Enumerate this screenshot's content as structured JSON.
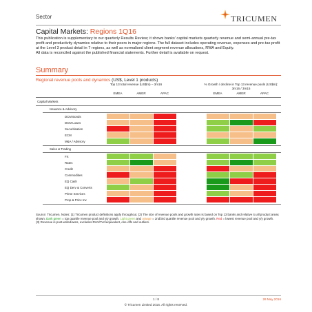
{
  "header": {
    "sector": "Sector",
    "logo_text": "TRICUMEN",
    "logo_icon": "tricumen-star-icon"
  },
  "title": {
    "main": "Capital Markets: ",
    "accent": "Regions 1Q16"
  },
  "intro": [
    "This publication is supplementary to our quarterly Results Review; it shows banks' capital markets quarterly revenue and semi-annual pre-tax profit and productivity dynamics relative to their peers in major regions. The full dataset includes operating revenue, expenses and pre-tax profit at the Level 3 product detail in 7 regions, as well as normalised client segment revenue allocations, RWA and Equity.",
    "All data is reconciled against the published financial statements. Further detail is available on request."
  ],
  "summary_heading": "Summary",
  "section_subtitle": {
    "accent": "Regional revenue pools and dynamics",
    "rest": " (US$, Level 1 products)"
  },
  "table": {
    "group1_header": "Top 13 total revenue (US$m) – 3m16",
    "group2_header": "% Growth / decline in Top 13 revenue pools (US$m): 3m16 / 3m15",
    "columns": [
      "EMEA",
      "AMER",
      "APAC",
      "EMEA",
      "AMER",
      "APAC"
    ],
    "capital_markets_label": "Capital Markets",
    "colors": {
      "dark_green": "#1a9a1a",
      "light_green": "#8fcf48",
      "orange": "#f6bf8a",
      "red": "#ee1c1c"
    },
    "sections": [
      {
        "label": "Issuance & Advisory",
        "rows": [
          {
            "label": "DCM Bonds",
            "cells": [
              "or",
              "or",
              "rd",
              "or",
              "or",
              "or"
            ]
          },
          {
            "label": "DCM Loans",
            "cells": [
              "or",
              "or",
              "rd",
              "lg",
              "dg",
              "rd"
            ]
          },
          {
            "label": "Securitisation",
            "cells": [
              "rd",
              "or",
              "rd",
              "lg",
              "or",
              "lg"
            ]
          },
          {
            "label": "ECM",
            "cells": [
              "or",
              "or",
              "rd",
              "or",
              "or",
              "or"
            ]
          },
          {
            "label": "M&A / Advisory",
            "cells": [
              "lg",
              "or",
              "rd",
              "lg",
              "or",
              "dg"
            ]
          }
        ]
      },
      {
        "label": "Sales & Trading",
        "rows": [
          {
            "label": "FX",
            "cells": [
              "lg",
              "lg",
              "or",
              "lg",
              "lg",
              "lg"
            ]
          },
          {
            "label": "Rates",
            "cells": [
              "lg",
              "dg",
              "or",
              "lg",
              "dg",
              "lg"
            ]
          },
          {
            "label": "Credit",
            "cells": [
              "or",
              "or",
              "rd",
              "rd",
              "or",
              "or"
            ]
          },
          {
            "label": "Commodities",
            "cells": [
              "rd",
              "or",
              "rd",
              "lg",
              "lg",
              "rd"
            ]
          },
          {
            "label": "EQ Cash",
            "cells": [
              "or",
              "lg",
              "rd",
              "dg",
              "rd",
              "rd"
            ]
          },
          {
            "label": "EQ Derv & Converts",
            "cells": [
              "lg",
              "or",
              "rd",
              "dg",
              "or",
              "rd"
            ]
          },
          {
            "label": "Prime Services",
            "cells": [
              "or",
              "or",
              "rd",
              "lg",
              "or",
              "rd"
            ]
          },
          {
            "label": "Prop & Princ Inv",
            "cells": [
              "rd",
              "or",
              "rd",
              "rd",
              "rd",
              "rd"
            ]
          }
        ]
      }
    ]
  },
  "notes": {
    "line1": "Source: Tricumen. Notes: (1) Tricumen product definitions apply throughout. (2) The size of revenue pools and growth rates is based on Top 13 banks and relative to all product areas shown. ",
    "dark_green": "Dark green",
    "t2": " = top quartile revenue pool and y/y growth. ",
    "light_green": "Light green",
    "t3": " and ",
    "orange": "orange",
    "t4": " = 2nd/3rd quartile revenue pool and y/y growth. ",
    "red": "Red",
    "t5": " = lowest revenue pool and y/y growth.",
    "line3": "(3) Revenue is post-writedowns, excludes DVA/FVA/equivalent, one-offs and outliers."
  },
  "footer": {
    "page": "1 / 8",
    "date": "26 May 2016",
    "copyright": "© Tricumen Limited 2016. All rights reserved."
  }
}
